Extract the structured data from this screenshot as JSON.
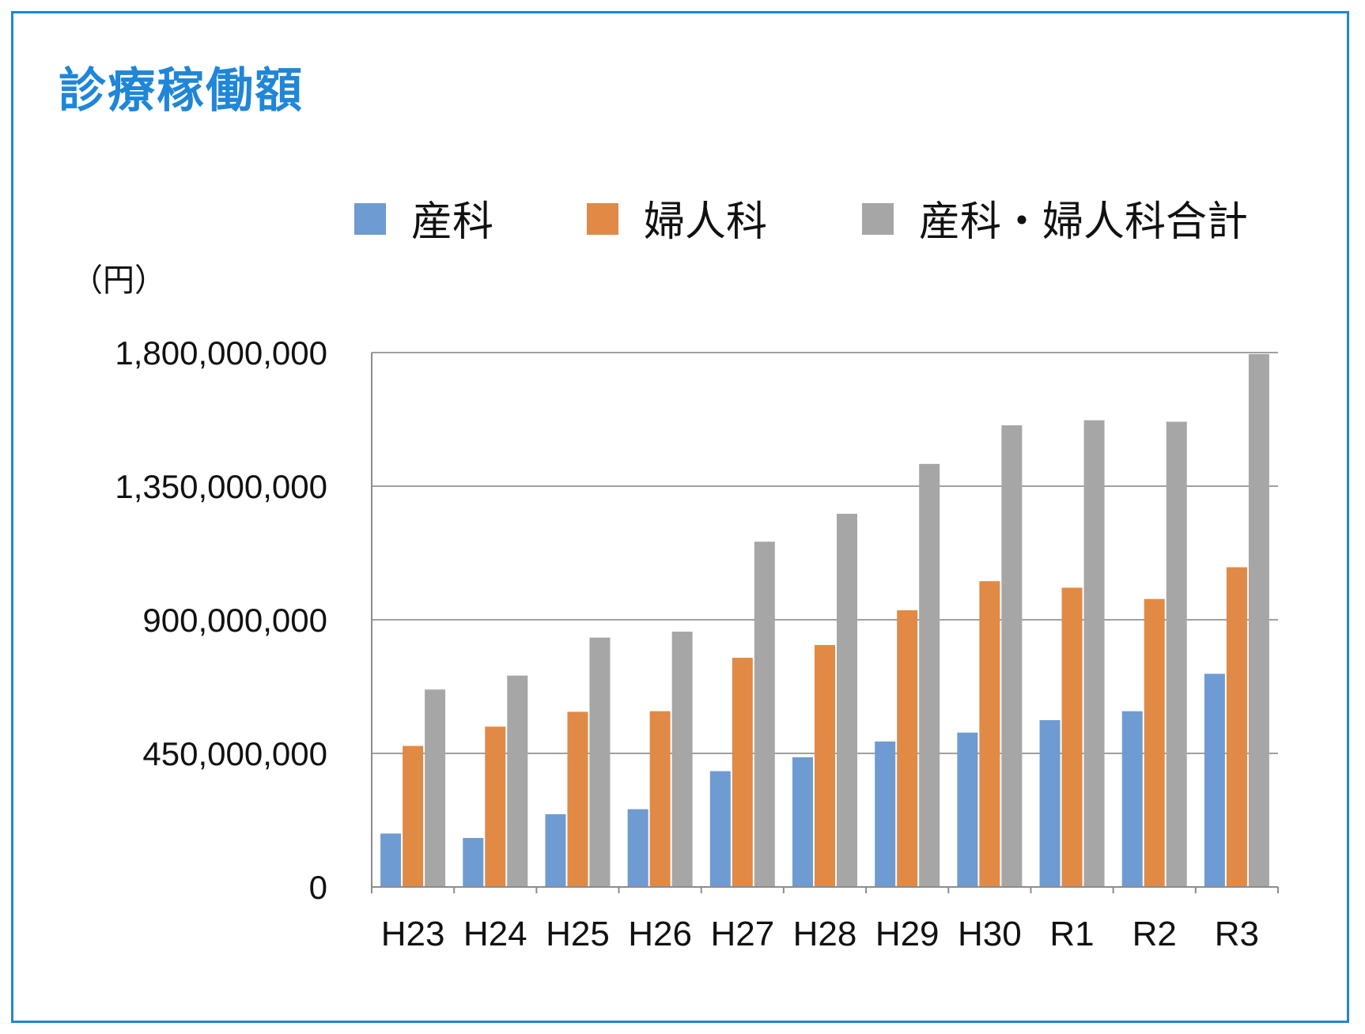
{
  "title": "診療稼働額",
  "unit_label": "（円）",
  "chart_data": {
    "type": "bar",
    "categories": [
      "H23",
      "H24",
      "H25",
      "H26",
      "H27",
      "H28",
      "H29",
      "H30",
      "R1",
      "R2",
      "R3"
    ],
    "series": [
      {
        "name": "産科",
        "color": "#6e9bd2",
        "values": [
          180000000,
          165000000,
          245000000,
          262000000,
          390000000,
          437000000,
          490000000,
          520000000,
          562000000,
          592000000,
          718000000
        ]
      },
      {
        "name": "婦人科",
        "color": "#e08a46",
        "values": [
          475000000,
          540000000,
          590000000,
          592000000,
          772000000,
          815000000,
          932000000,
          1030000000,
          1008000000,
          970000000,
          1077000000
        ]
      },
      {
        "name": "産科・婦人科合計",
        "color": "#a6a6a6",
        "values": [
          665000000,
          712000000,
          840000000,
          860000000,
          1163000000,
          1257000000,
          1425000000,
          1555000000,
          1572000000,
          1567000000,
          1795000000
        ]
      }
    ],
    "yticks": [
      "0",
      "450,000,000",
      "900,000,000",
      "1,350,000,000",
      "1,800,000,000"
    ],
    "ylim": [
      0,
      1800000000
    ],
    "grid": true,
    "legend_position": "top"
  }
}
